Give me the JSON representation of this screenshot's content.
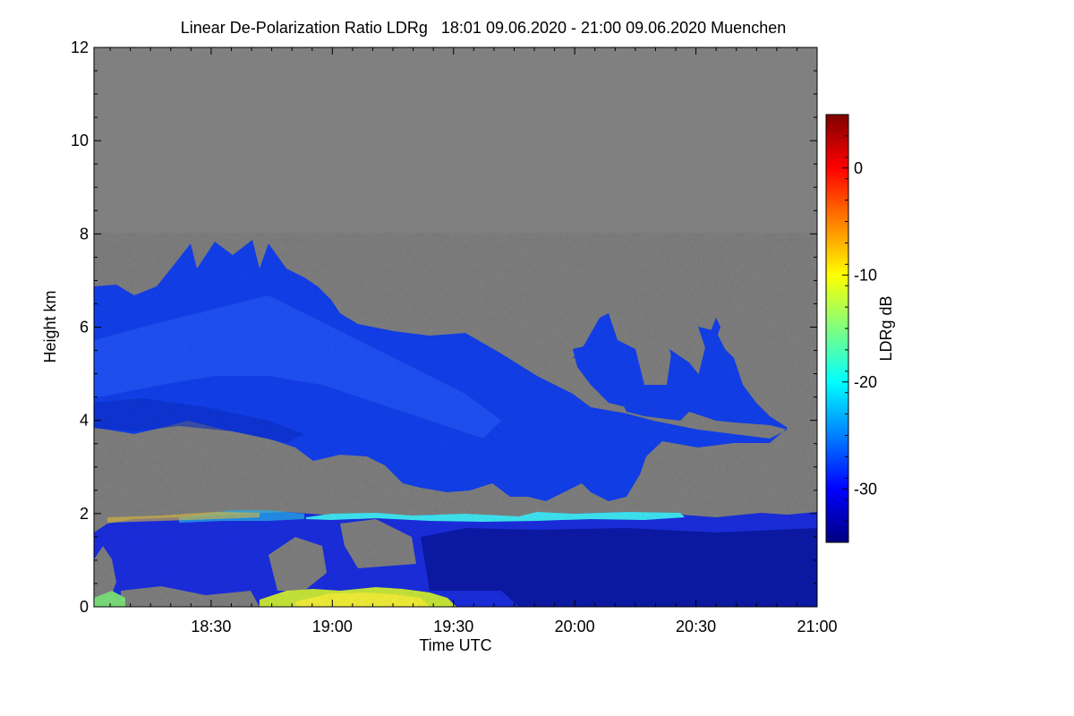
{
  "title": "Linear De-Polarization Ratio LDRg   18:01 09.06.2020 - 21:00 09.06.2020 Muenchen",
  "chart_data": {
    "type": "heatmap",
    "title": "Linear De-Polarization Ratio LDRg   18:01 09.06.2020 - 21:00 09.06.2020 Muenchen",
    "xlabel": "Time UTC",
    "ylabel": "Height km",
    "x_range": [
      "18:01",
      "21:00"
    ],
    "x_ticks": [
      "18:30",
      "19:00",
      "19:30",
      "20:00",
      "20:30",
      "21:00"
    ],
    "x_tick_minutes": [
      29,
      59,
      89,
      119,
      149,
      179
    ],
    "ylim": [
      0,
      12
    ],
    "y_ticks": [
      0,
      2,
      4,
      6,
      8,
      10,
      12
    ],
    "no_signal_color": "#808080",
    "colorbar": {
      "label": "LDRg dB",
      "range": [
        -35,
        5
      ],
      "ticks": [
        0,
        -10,
        -20,
        -30
      ],
      "colors": [
        "#00007f",
        "#0000ff",
        "#007fff",
        "#00ffff",
        "#7fff7f",
        "#ffff00",
        "#ff7f00",
        "#ff0000",
        "#7f0000"
      ]
    },
    "features": [
      {
        "name": "ice cloud",
        "ldr_db": -31,
        "time": [
          "18:01",
          "20:49"
        ],
        "base_km": [
          3.9,
          3.7
        ],
        "top_km": [
          6.9,
          7.8,
          6.3,
          4.0
        ]
      },
      {
        "name": "melting layer",
        "ldr_db": -22,
        "time": [
          "19:05",
          "20:30"
        ],
        "height_km": 1.95
      },
      {
        "name": "boundary layer",
        "ldr_db": -31,
        "time": [
          "18:01",
          "21:00"
        ],
        "height_km": [
          0,
          1.9
        ]
      },
      {
        "name": "near-surface aerosol",
        "ldr_db": -12,
        "time": [
          "18:35",
          "19:45"
        ],
        "height_km": [
          0,
          0.4
        ]
      }
    ]
  }
}
